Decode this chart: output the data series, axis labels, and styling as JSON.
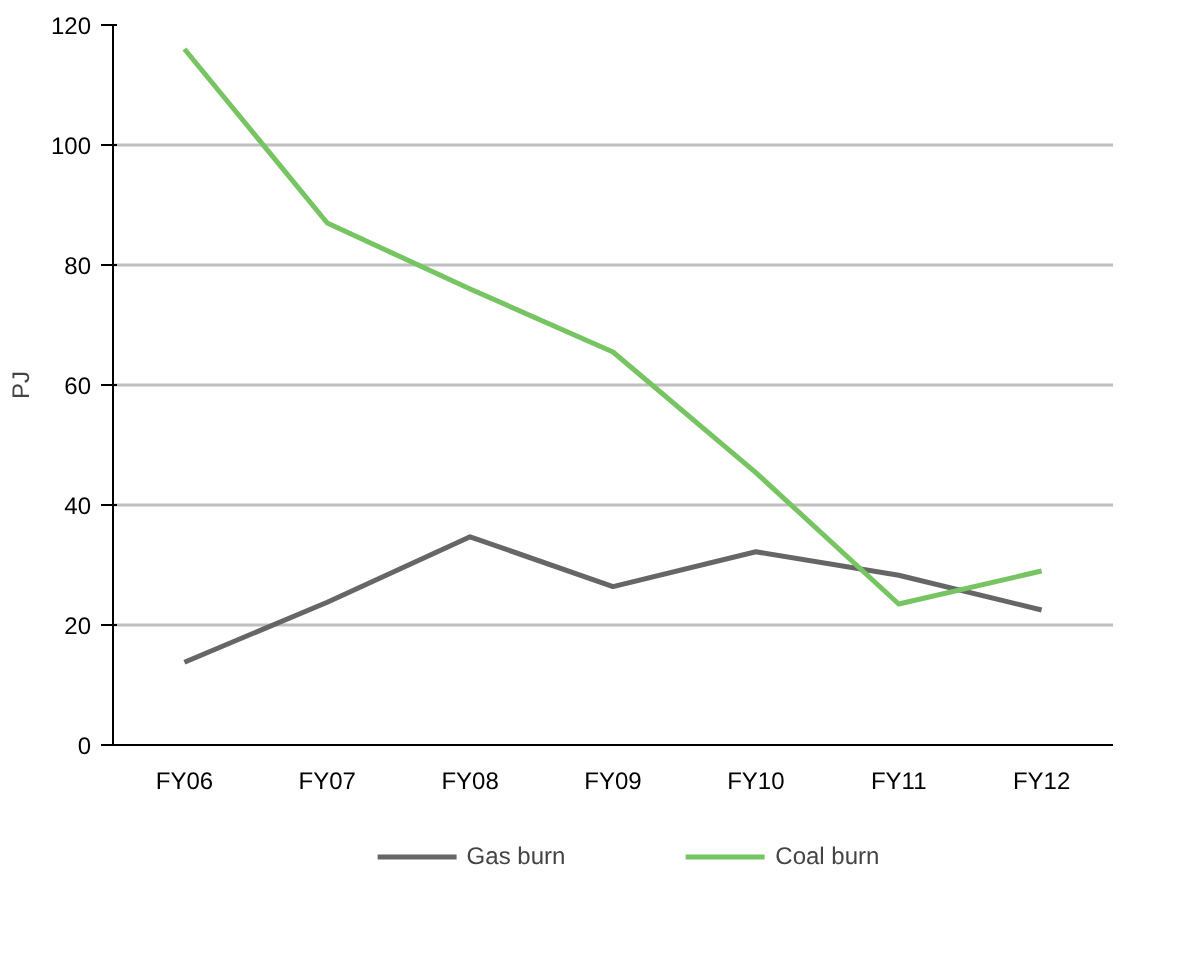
{
  "chart_data": {
    "type": "line",
    "ylabel": "PJ",
    "categories": [
      "FY06",
      "FY07",
      "FY08",
      "FY09",
      "FY10",
      "FY11",
      "FY12"
    ],
    "series": [
      {
        "name": "Gas burn",
        "color": "#666666",
        "values": [
          13.8,
          23.8,
          34.7,
          26.4,
          32.2,
          28.3,
          22.5
        ]
      },
      {
        "name": "Coal burn",
        "color": "#77c462",
        "values": [
          116,
          87,
          76,
          65.5,
          45.4,
          23.5,
          29
        ]
      }
    ],
    "ylim": [
      0,
      120
    ],
    "yticks": [
      0,
      20,
      40,
      60,
      80,
      100,
      120
    ],
    "grid": "y",
    "legend": "bottom",
    "marker": "none",
    "line_style": "solid"
  }
}
